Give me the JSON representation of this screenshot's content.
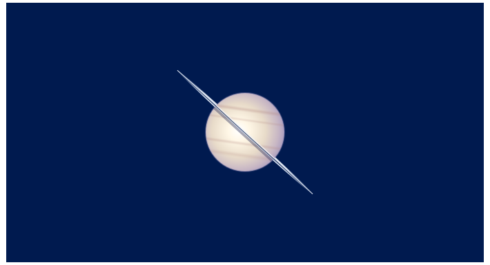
{
  "scene": {
    "subject": "saturn-planet-icon",
    "colors": {
      "space_background": "#001a4f",
      "frame": "#ffffff",
      "planet_highlight": "#fffbe8",
      "planet_midtone": "#e6d8c8",
      "planet_shadow": "#a89cc0",
      "ring_light": "#dce6f5",
      "ring_dark": "#3a4f7a"
    }
  }
}
